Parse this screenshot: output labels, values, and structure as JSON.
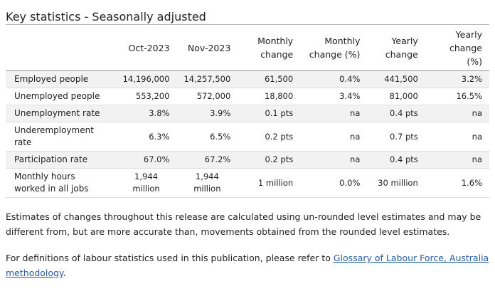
{
  "header": {
    "title": "Key statistics - Seasonally adjusted"
  },
  "table": {
    "columns": [
      "",
      "Oct-2023",
      "Nov-2023",
      "Monthly change",
      "Monthly change (%)",
      "Yearly change",
      "Yearly change (%)"
    ],
    "rows": [
      [
        "Employed people",
        "14,196,000",
        "14,257,500",
        "61,500",
        "0.4%",
        "441,500",
        "3.2%"
      ],
      [
        "Unemployed people",
        "553,200",
        "572,000",
        "18,800",
        "3.4%",
        "81,000",
        "16.5%"
      ],
      [
        "Unemployment rate",
        "3.8%",
        "3.9%",
        "0.1 pts",
        "na",
        "0.4 pts",
        "na"
      ],
      [
        "Underemployment rate",
        "6.3%",
        "6.5%",
        "0.2 pts",
        "na",
        "0.7 pts",
        "na"
      ],
      [
        "Participation rate",
        "67.0%",
        "67.2%",
        "0.2 pts",
        "na",
        "0.4 pts",
        "na"
      ],
      [
        "Monthly hours worked in all jobs",
        "1,944 million",
        "1,944 million",
        "1 million",
        "0.0%",
        "30 million",
        "1.6%"
      ]
    ]
  },
  "notes": {
    "note_1": "Estimates of changes throughout this release are calculated using un-rounded level estimates and may be different from, but are more accurate than, movements obtained from the rounded level estimates.",
    "note_2_text": "For definitions of labour statistics used in this publication, please refer to",
    "note_2_link": "Glossary of Labour Force, Australia methodology",
    "note_2_end": "."
  }
}
